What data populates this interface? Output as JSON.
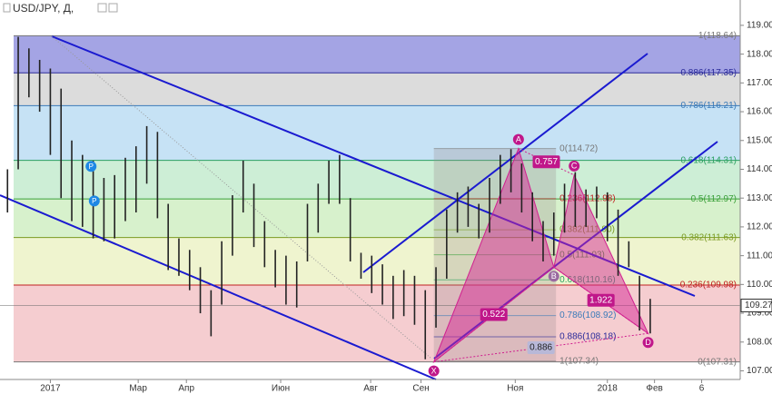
{
  "chart_data": {
    "type": "ohlc",
    "symbol": "USD/JPY, Д,",
    "x": [
      -4,
      -3,
      -2,
      -1,
      0,
      1,
      2,
      3,
      4,
      5,
      6,
      7,
      8,
      9,
      10,
      11,
      12,
      13,
      14,
      15,
      16,
      17,
      18,
      19,
      20,
      21,
      22,
      23,
      24,
      25,
      26,
      27,
      28,
      29,
      30,
      31,
      32,
      33,
      34,
      35,
      36,
      37,
      38,
      39,
      40,
      41,
      42,
      43,
      44,
      45,
      46,
      47,
      48,
      49,
      50,
      51,
      52,
      53,
      54,
      55,
      56
    ],
    "high": [
      114,
      118.6,
      118.2,
      117.8,
      117.5,
      116.8,
      115,
      114.5,
      114.3,
      113.7,
      113.8,
      114.4,
      114.8,
      115.5,
      115.3,
      112.8,
      111.6,
      111.2,
      110.6,
      109.8,
      111.5,
      113.1,
      114.3,
      113.5,
      112.2,
      111.2,
      111,
      110.8,
      112.8,
      113.5,
      114.3,
      114.5,
      113,
      111.1,
      111,
      110.7,
      110.3,
      110.5,
      110.3,
      109.8,
      110.6,
      112.6,
      113.2,
      113.4,
      112.8,
      113.7,
      114.5,
      114.7,
      114.2,
      113.2,
      112.2,
      112.5,
      113.5,
      113.9,
      113.3,
      113.4,
      113.2,
      112.6,
      111.5,
      110.3,
      109.5
    ],
    "low": [
      112.5,
      114,
      116.5,
      116,
      114.5,
      113,
      112.2,
      112,
      111.6,
      111.5,
      111.6,
      112.2,
      112.5,
      113.5,
      112.3,
      110.5,
      110.3,
      109.8,
      109,
      108.2,
      109.3,
      111,
      112.5,
      111.3,
      110.6,
      109.9,
      109.3,
      109.2,
      110.8,
      111.8,
      112.8,
      112.8,
      110.8,
      110.2,
      109.7,
      109.3,
      108.8,
      108.9,
      108.6,
      107.4,
      108.5,
      110.2,
      111.8,
      112,
      111.6,
      111.8,
      112.8,
      113.2,
      112.5,
      111.5,
      110.8,
      111,
      111.8,
      112,
      112,
      112.3,
      111.5,
      110.3,
      110.6,
      108.4,
      108.3
    ],
    "color": "#222222",
    "xlim": [
      -4.7,
      64.4
    ],
    "xticks": [
      {
        "value": 0,
        "label": "2017"
      },
      {
        "value": 8.2,
        "label": "Мар"
      },
      {
        "value": 12.7,
        "label": "Апр"
      },
      {
        "value": 21.5,
        "label": "Июн"
      },
      {
        "value": 29.9,
        "label": "Авг"
      },
      {
        "value": 34.6,
        "label": "Сен"
      },
      {
        "value": 43.4,
        "label": "Ноя"
      },
      {
        "value": 52,
        "label": "2018"
      },
      {
        "value": 56.4,
        "label": "Фев"
      },
      {
        "value": 60.8,
        "label": "6"
      }
    ],
    "ylim": [
      106.7,
      119.88
    ],
    "yticks": [
      {
        "value": 107,
        "label": "107.00"
      },
      {
        "value": 108,
        "label": "108.00"
      },
      {
        "value": 109,
        "label": "109.00"
      },
      {
        "value": 110,
        "label": "110.00"
      },
      {
        "value": 111,
        "label": "111.00"
      },
      {
        "value": 112,
        "label": "112.00"
      },
      {
        "value": 113,
        "label": "113.00"
      },
      {
        "value": 114,
        "label": "114.00"
      },
      {
        "value": 115,
        "label": "115.00"
      },
      {
        "value": 116,
        "label": "116.00"
      },
      {
        "value": 117,
        "label": "117.00"
      },
      {
        "value": 118,
        "label": "118.00"
      },
      {
        "value": 119,
        "label": "119.00"
      }
    ],
    "last_price": 109.27,
    "fib_levels": [
      {
        "value": 118.64,
        "label": "1(118.64)",
        "color": "#777777"
      },
      {
        "value": 117.35,
        "label": "0.886(117.35)",
        "color": "#2a2a9a"
      },
      {
        "value": 116.21,
        "label": "0.786(116.21)",
        "color": "#3a7ab8"
      },
      {
        "value": 114.31,
        "label": "0.618(114.31)",
        "color": "#2aa060"
      },
      {
        "value": 112.97,
        "label": "0.5(112.97)",
        "color": "#3aa03a"
      },
      {
        "value": 111.63,
        "label": "0.382(111.63)",
        "color": "#7a9a20"
      },
      {
        "value": 109.98,
        "label": "0.236(109.98)",
        "color": "#c02020"
      },
      {
        "value": 107.31,
        "label": "0(107.31)",
        "color": "#777777"
      }
    ],
    "zone_colors": [
      "#a4a4e4",
      "#dcdcdc",
      "#c6e2f5",
      "#cdeed6",
      "#d7f1cc",
      "#eff4cf",
      "#f5cdd0"
    ],
    "small_fib": [
      {
        "value": 114.72,
        "label": "0(114.72)",
        "color": "#777777"
      },
      {
        "value": 112.98,
        "label": "0.236(112.98)",
        "color": "#c02020"
      },
      {
        "value": 111.9,
        "label": "0.382(111.90)",
        "color": "#7a9a20"
      },
      {
        "value": 111.03,
        "label": "0.5(111.03)",
        "color": "#3aa03a"
      },
      {
        "value": 110.16,
        "label": "0.618(110.16)",
        "color": "#2aa060"
      },
      {
        "value": 108.92,
        "label": "0.786(108.92)",
        "color": "#3a7ab8"
      },
      {
        "value": 108.18,
        "label": "0.886(108.18)",
        "color": "#2a2a9a"
      },
      {
        "value": 107.34,
        "label": "1(107.34)",
        "color": "#777777"
      }
    ],
    "pattern": [
      {
        "label": "X",
        "x": 35.8,
        "price": 107.31
      },
      {
        "label": "A",
        "x": 43.7,
        "price": 114.72
      },
      {
        "label": "B",
        "x": 47,
        "price": 110.6
      },
      {
        "label": "C",
        "x": 48.9,
        "price": 113.8
      },
      {
        "label": "D",
        "x": 55.8,
        "price": 108.3
      }
    ],
    "ratios": [
      {
        "label": "0.757"
      },
      {
        "label": "0.522"
      },
      {
        "label": "1.922"
      },
      {
        "label": "0.886"
      }
    ],
    "markers": [
      {
        "label": "P",
        "x": 3.8,
        "price": 114.1
      },
      {
        "label": "P",
        "x": 4.1,
        "price": 112.9
      }
    ]
  }
}
